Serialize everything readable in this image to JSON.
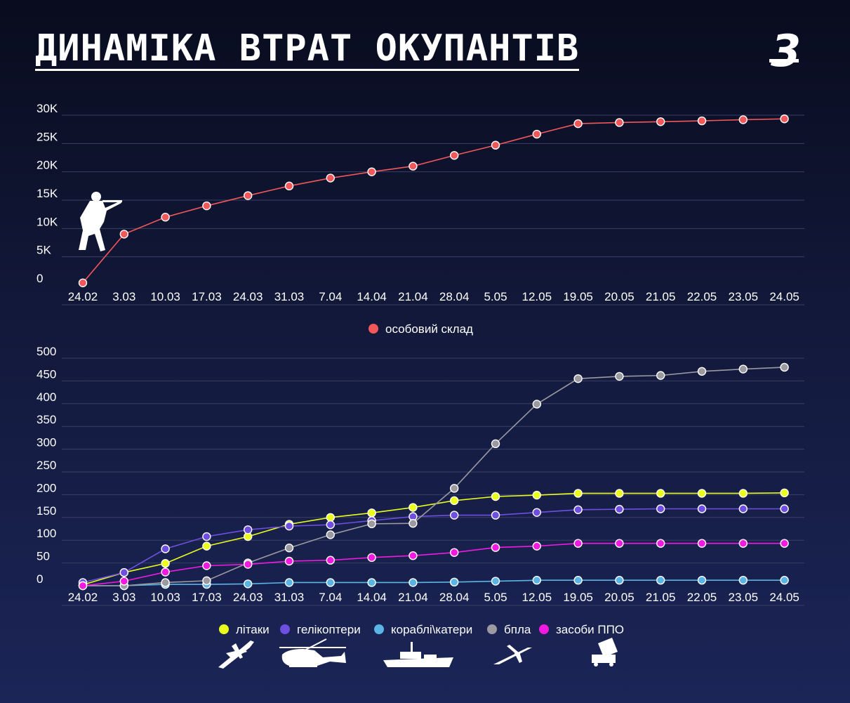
{
  "title": "ДИНАМІКА ВТРАТ ОКУПАНТІВ",
  "logo_glyph": "3",
  "colors": {
    "background_top": "#090c1e",
    "background_bottom": "#1b2557",
    "personnel": "#f2575a",
    "aircraft": "#eaff1a",
    "helicopters": "#6f4fe0",
    "ships": "#5ab4e6",
    "uav": "#9a9aa0",
    "air_defense": "#f21ae0"
  },
  "icons": [
    "soldier-icon",
    "airplane-icon",
    "helicopter-icon",
    "ship-icon",
    "drone-icon",
    "air-defense-icon"
  ],
  "chart_data": [
    {
      "type": "line",
      "categories": [
        "24.02",
        "3.03",
        "10.03",
        "17.03",
        "24.03",
        "31.03",
        "7.04",
        "14.04",
        "21.04",
        "28.04",
        "5.05",
        "12.05",
        "19.05",
        "20.05",
        "21.05",
        "22.05",
        "23.05",
        "24.05"
      ],
      "y_tick_labels": [
        "0",
        "5K",
        "10K",
        "15K",
        "20K",
        "25K",
        "30K"
      ],
      "y_ticks": [
        0,
        5000,
        10000,
        15000,
        20000,
        25000,
        30000
      ],
      "ylim": [
        0,
        30000
      ],
      "grid": true,
      "legend_position": "bottom-center",
      "series": [
        {
          "name": "особовий склад",
          "color": "#f2575a",
          "values": [
            400,
            9000,
            12000,
            14000,
            15800,
            17500,
            18900,
            20000,
            21000,
            22900,
            24700,
            26650,
            28500,
            28700,
            28850,
            29000,
            29200,
            29350
          ]
        }
      ]
    },
    {
      "type": "line",
      "categories": [
        "24.02",
        "3.03",
        "10.03",
        "17.03",
        "24.03",
        "31.03",
        "7.04",
        "14.04",
        "21.04",
        "28.04",
        "5.05",
        "12.05",
        "19.05",
        "20.05",
        "21.05",
        "22.05",
        "23.05",
        "24.05"
      ],
      "y_tick_labels": [
        "0",
        "50",
        "100",
        "150",
        "200",
        "250",
        "300",
        "350",
        "400",
        "450",
        "500"
      ],
      "y_ticks": [
        0,
        50,
        100,
        150,
        200,
        250,
        300,
        350,
        400,
        450,
        500
      ],
      "ylim": [
        0,
        500
      ],
      "grid": true,
      "legend_position": "bottom-center",
      "series": [
        {
          "name": "літаки",
          "color": "#eaff1a",
          "values": [
            2,
            29,
            49,
            87,
            108,
            135,
            150,
            160,
            172,
            187,
            196,
            199,
            203,
            203,
            203,
            203,
            203,
            204
          ]
        },
        {
          "name": "гелікоптери",
          "color": "#6f4fe0",
          "values": [
            7,
            29,
            81,
            108,
            123,
            131,
            134,
            143,
            152,
            155,
            155,
            161,
            167,
            168,
            169,
            169,
            169,
            169
          ]
        },
        {
          "name": "кораблі\\катери",
          "color": "#5ab4e6",
          "values": [
            0,
            0,
            3,
            3,
            4,
            7,
            7,
            7,
            7,
            8,
            10,
            12,
            12,
            12,
            12,
            12,
            12,
            12
          ]
        },
        {
          "name": "бпла",
          "color": "#9a9aa0",
          "values": [
            0,
            0,
            7,
            11,
            50,
            83,
            112,
            136,
            137,
            214,
            312,
            399,
            455,
            460,
            462,
            471,
            476,
            480
          ]
        },
        {
          "name": "засоби ППО",
          "color": "#f21ae0",
          "values": [
            0,
            10,
            30,
            44,
            47,
            54,
            56,
            62,
            66,
            73,
            84,
            87,
            93,
            93,
            93,
            93,
            93,
            93
          ]
        }
      ]
    }
  ]
}
